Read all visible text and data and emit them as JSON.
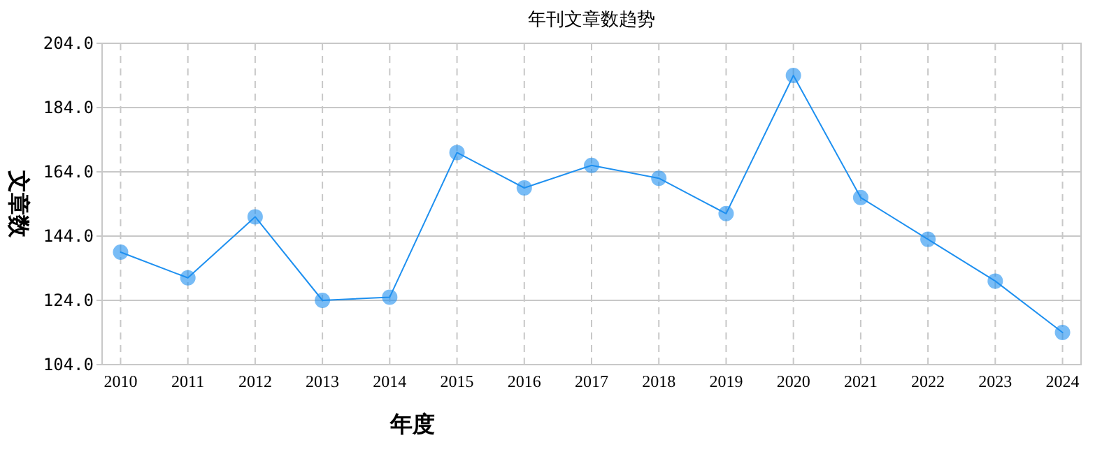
{
  "chart_data": {
    "type": "line",
    "title": "年刊文章数趋势",
    "xlabel": "年度",
    "ylabel": "文章数",
    "categories": [
      "2010",
      "2011",
      "2012",
      "2013",
      "2014",
      "2015",
      "2016",
      "2017",
      "2018",
      "2019",
      "2020",
      "2021",
      "2022",
      "2023",
      "2024"
    ],
    "series": [
      {
        "color": "#1e90f0",
        "values": [
          139,
          131,
          150,
          124,
          125,
          170,
          159,
          166,
          162,
          151,
          194,
          156,
          143,
          130,
          114
        ]
      }
    ],
    "ylim": [
      104,
      204
    ],
    "yticks": [
      {
        "value": 104,
        "label": "104.0"
      },
      {
        "value": 124,
        "label": "124.0"
      },
      {
        "value": 144,
        "label": "144.0"
      },
      {
        "value": 164,
        "label": "164.0"
      },
      {
        "value": 184,
        "label": "184.0"
      },
      {
        "value": 204,
        "label": "204.0"
      }
    ],
    "grid": true,
    "marker": "circle",
    "line_style": "solid"
  }
}
